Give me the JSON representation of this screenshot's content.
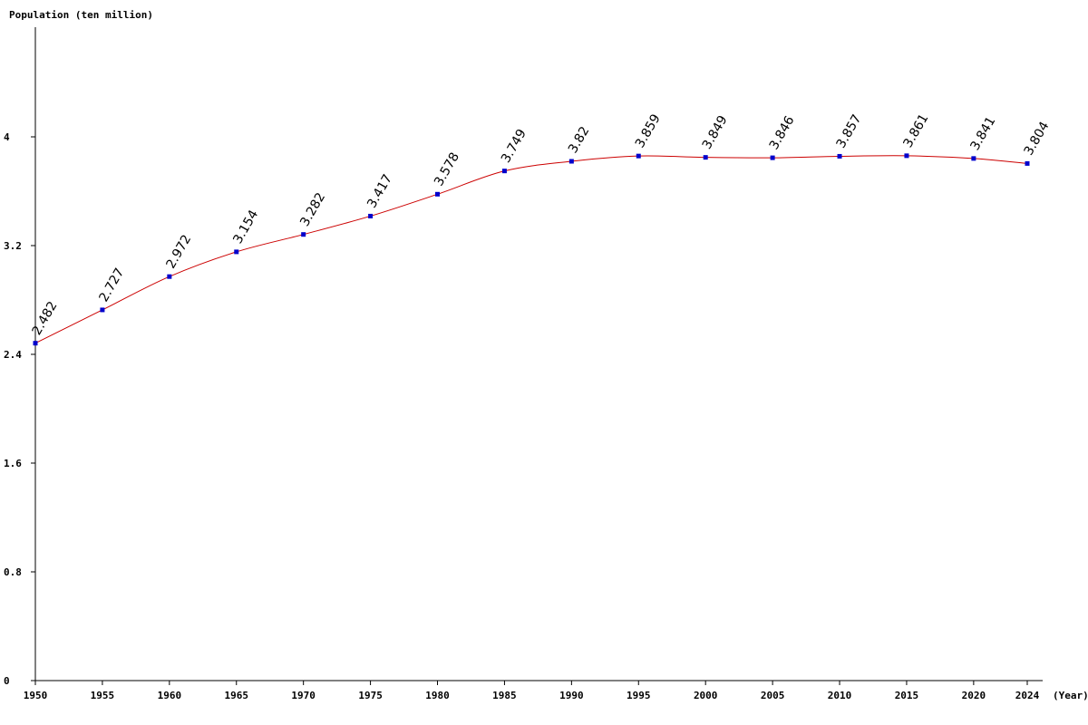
{
  "chart_data": {
    "type": "line",
    "ylabel": "Population (ten million)",
    "xlabel": "(Year)",
    "ylim": [
      0,
      4.8
    ],
    "y_ticks": [
      "0",
      "0.8",
      "1.6",
      "2.4",
      "3.2",
      "4"
    ],
    "y_tick_values": [
      0,
      0.8,
      1.6,
      2.4,
      3.2,
      4
    ],
    "x": [
      "1950",
      "1955",
      "1960",
      "1965",
      "1970",
      "1975",
      "1980",
      "1985",
      "1990",
      "1995",
      "2000",
      "2005",
      "2010",
      "2015",
      "2020",
      "2024"
    ],
    "x_values": [
      1950,
      1955,
      1960,
      1965,
      1970,
      1975,
      1980,
      1985,
      1990,
      1995,
      2000,
      2005,
      2010,
      2015,
      2020,
      2024
    ],
    "series": [
      {
        "values": [
          2.482,
          2.727,
          2.972,
          3.154,
          3.282,
          3.417,
          3.578,
          3.749,
          3.82,
          3.859,
          3.849,
          3.846,
          3.857,
          3.861,
          3.841,
          3.804
        ],
        "labels": [
          "2.482",
          "2.727",
          "2.972",
          "3.154",
          "3.282",
          "3.417",
          "3.578",
          "3.749",
          "3.82",
          "3.859",
          "3.849",
          "3.846",
          "3.857",
          "3.861",
          "3.841",
          "3.804"
        ],
        "line_color": "#cc0000",
        "marker_color": "#0000cc"
      }
    ],
    "grid": false,
    "axis_color": "#000000"
  }
}
